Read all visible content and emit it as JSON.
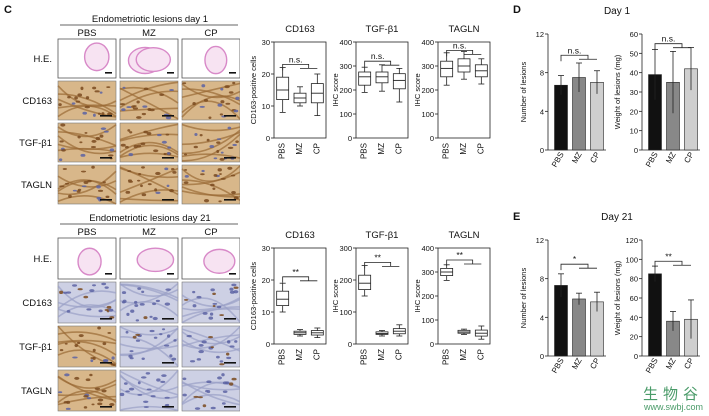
{
  "panels": {
    "C": "C",
    "D": "D",
    "E": "E"
  },
  "ihc_day1": {
    "title": "Endometriotic lesions day 1",
    "columns": [
      "PBS",
      "MZ",
      "CP"
    ],
    "rows": [
      "H.E.",
      "CD163",
      "TGF-β1",
      "TAGLN"
    ]
  },
  "ihc_day21": {
    "title": "Endometriotic lesions day 21",
    "columns": [
      "PBS",
      "MZ",
      "CP"
    ],
    "rows": [
      "H.E.",
      "CD163",
      "TGF-β1",
      "TAGLN"
    ]
  },
  "panel_d": {
    "title": "Day 1"
  },
  "panel_e": {
    "title": "Day 21"
  },
  "watermark": {
    "cn": "生物谷",
    "url": "www.swbj.com"
  },
  "colors": {
    "he_stain": "#d889c8",
    "dab": "#b07838",
    "hematoxylin": "#7f86b8",
    "pbs_bar": "#111111",
    "mz_bar": "#888888",
    "cp_bar": "#cfcfcf"
  },
  "chart_data": [
    {
      "type": "box",
      "id": "c1_cd163",
      "title": "CD163",
      "ylabel": "CD163-positive cells",
      "categories": [
        "PBS",
        "MZ",
        "CP"
      ],
      "ylim": [
        0,
        30
      ],
      "yticks": [
        0,
        10,
        20,
        30
      ],
      "boxes": [
        {
          "min": 8,
          "q1": 12,
          "median": 15,
          "q3": 19,
          "max": 22
        },
        {
          "min": 10,
          "q1": 11,
          "median": 12.5,
          "q3": 14,
          "max": 16
        },
        {
          "min": 7,
          "q1": 11,
          "median": 14,
          "q3": 17,
          "max": 20
        }
      ],
      "annotations": [
        {
          "label": "n.s.",
          "from": 0,
          "to": [
            1,
            2
          ],
          "level": 23
        }
      ]
    },
    {
      "type": "box",
      "id": "c1_tgfb1",
      "title": "TGF-β1",
      "ylabel": "IHC score",
      "categories": [
        "PBS",
        "MZ",
        "CP"
      ],
      "ylim": [
        0,
        400
      ],
      "yticks": [
        0,
        100,
        200,
        300,
        400
      ],
      "boxes": [
        {
          "min": 190,
          "q1": 220,
          "median": 255,
          "q3": 275,
          "max": 295
        },
        {
          "min": 195,
          "q1": 230,
          "median": 255,
          "q3": 275,
          "max": 305
        },
        {
          "min": 150,
          "q1": 205,
          "median": 240,
          "q3": 268,
          "max": 290
        }
      ],
      "annotations": [
        {
          "label": "n.s.",
          "from": 0,
          "to": [
            1,
            2
          ],
          "level": 320
        }
      ]
    },
    {
      "type": "box",
      "id": "c1_tagln",
      "title": "TAGLN",
      "ylabel": "IHC score",
      "categories": [
        "PBS",
        "MZ",
        "CP"
      ],
      "ylim": [
        0,
        400
      ],
      "yticks": [
        0,
        100,
        200,
        300,
        400
      ],
      "boxes": [
        {
          "min": 220,
          "q1": 255,
          "median": 290,
          "q3": 320,
          "max": 355
        },
        {
          "min": 245,
          "q1": 275,
          "median": 300,
          "q3": 330,
          "max": 360
        },
        {
          "min": 225,
          "q1": 255,
          "median": 280,
          "q3": 305,
          "max": 330
        }
      ],
      "annotations": [
        {
          "label": "n.s.",
          "from": 0,
          "to": [
            1,
            2
          ],
          "level": 365
        }
      ]
    },
    {
      "type": "box",
      "id": "c21_cd163",
      "title": "CD163",
      "ylabel": "CD163-positive cells",
      "categories": [
        "PBS",
        "MZ",
        "CP"
      ],
      "ylim": [
        0,
        30
      ],
      "yticks": [
        0,
        10,
        20,
        30
      ],
      "boxes": [
        {
          "min": 10,
          "q1": 12,
          "median": 14,
          "q3": 16.5,
          "max": 19
        },
        {
          "min": 2.5,
          "q1": 3,
          "median": 3.5,
          "q3": 4,
          "max": 4.5
        },
        {
          "min": 2,
          "q1": 2.8,
          "median": 3.5,
          "q3": 4.2,
          "max": 5
        }
      ],
      "annotations": [
        {
          "label": "**",
          "from": 0,
          "to": [
            1,
            2
          ],
          "level": 21
        }
      ]
    },
    {
      "type": "box",
      "id": "c21_tgfb1",
      "title": "TGF-β1",
      "ylabel": "IHC score",
      "categories": [
        "PBS",
        "MZ",
        "CP"
      ],
      "ylim": [
        0,
        300
      ],
      "yticks": [
        0,
        100,
        200,
        300
      ],
      "boxes": [
        {
          "min": 150,
          "q1": 170,
          "median": 190,
          "q3": 215,
          "max": 245
        },
        {
          "min": 25,
          "q1": 30,
          "median": 33,
          "q3": 38,
          "max": 42
        },
        {
          "min": 25,
          "q1": 32,
          "median": 40,
          "q3": 48,
          "max": 60
        }
      ],
      "annotations": [
        {
          "label": "**",
          "from": 0,
          "to": [
            1,
            2
          ],
          "level": 255
        }
      ]
    },
    {
      "type": "box",
      "id": "c21_tagln",
      "title": "TAGLN",
      "ylabel": "IHC score",
      "categories": [
        "PBS",
        "MZ",
        "CP"
      ],
      "ylim": [
        0,
        400
      ],
      "yticks": [
        0,
        100,
        200,
        300,
        400
      ],
      "boxes": [
        {
          "min": 265,
          "q1": 285,
          "median": 300,
          "q3": 315,
          "max": 330
        },
        {
          "min": 40,
          "q1": 45,
          "median": 50,
          "q3": 57,
          "max": 62
        },
        {
          "min": 20,
          "q1": 33,
          "median": 45,
          "q3": 58,
          "max": 75
        }
      ],
      "annotations": [
        {
          "label": "**",
          "from": 0,
          "to": [
            1,
            2
          ],
          "level": 350
        }
      ]
    },
    {
      "type": "bar",
      "id": "d_number",
      "ylabel": "Number of lesions",
      "categories": [
        "PBS",
        "MZ",
        "CP"
      ],
      "ylim": [
        0,
        12
      ],
      "yticks": [
        0,
        4,
        8,
        12
      ],
      "values": [
        6.7,
        7.5,
        7.0
      ],
      "errors": [
        1.0,
        1.5,
        1.2
      ],
      "colors": [
        "#111111",
        "#888888",
        "#cfcfcf"
      ],
      "annotations": [
        {
          "label": "n.s.",
          "from": 0,
          "to": [
            1,
            2
          ],
          "level": 9.8
        }
      ]
    },
    {
      "type": "bar",
      "id": "d_weight",
      "ylabel": "Weight of lesions (mg)",
      "categories": [
        "PBS",
        "MZ",
        "CP"
      ],
      "ylim": [
        0,
        60
      ],
      "yticks": [
        0,
        10,
        20,
        30,
        40,
        50,
        60
      ],
      "values": [
        39,
        35,
        42
      ],
      "errors": [
        13,
        16,
        11
      ],
      "colors": [
        "#111111",
        "#888888",
        "#cfcfcf"
      ],
      "annotations": [
        {
          "label": "n.s.",
          "from": 0,
          "to": [
            1,
            2
          ],
          "level": 55
        }
      ]
    },
    {
      "type": "bar",
      "id": "e_number",
      "ylabel": "Number of lesions",
      "categories": [
        "PBS",
        "MZ",
        "CP"
      ],
      "ylim": [
        0,
        12
      ],
      "yticks": [
        0,
        4,
        8,
        12
      ],
      "values": [
        7.3,
        5.9,
        5.6
      ],
      "errors": [
        1.2,
        0.6,
        1.0
      ],
      "colors": [
        "#111111",
        "#888888",
        "#cfcfcf"
      ],
      "annotations": [
        {
          "label": "*",
          "from": 0,
          "to": [
            1,
            2
          ],
          "level": 9.5
        }
      ]
    },
    {
      "type": "bar",
      "id": "e_weight",
      "ylabel": "Weight of lesions (mg)",
      "categories": [
        "PBS",
        "MZ",
        "CP"
      ],
      "ylim": [
        0,
        120
      ],
      "yticks": [
        0,
        20,
        40,
        60,
        80,
        100,
        120
      ],
      "values": [
        85,
        36,
        38
      ],
      "errors": [
        8,
        10,
        20
      ],
      "colors": [
        "#111111",
        "#888888",
        "#cfcfcf"
      ],
      "annotations": [
        {
          "label": "**",
          "from": 0,
          "to": [
            1,
            2
          ],
          "level": 98
        }
      ]
    }
  ]
}
